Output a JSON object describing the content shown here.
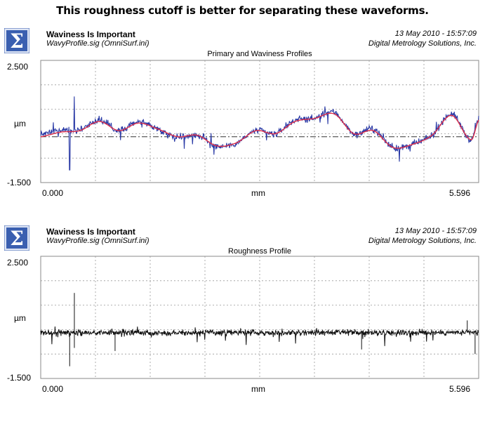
{
  "headline": "This roughness cutoff is better for separating these waveforms.",
  "colors": {
    "primary_profile": "#2a3aa6",
    "waviness_profile": "#e0304a",
    "roughness_profile": "#111111",
    "grid": "#9a9a9a",
    "logo_bg": "#3a5fb0",
    "logo_fg": "#ffffff"
  },
  "icon": "sigma-logo-icon",
  "panels": [
    {
      "header": {
        "title": "Waviness Is Important",
        "file": "WavyProfile.sig  (OmniSurf.ini)",
        "date": "13 May 2010 - 15:57:09",
        "company": "Digital Metrology Solutions, Inc."
      }
    },
    {
      "header": {
        "title": "Waviness Is Important",
        "file": "WavyProfile.sig  (OmniSurf.ini)",
        "date": "13 May 2010 - 15:57:09",
        "company": "Digital Metrology Solutions, Inc."
      }
    }
  ],
  "chart_data": [
    {
      "type": "line",
      "title": "Primary and Waviness Profiles",
      "xlabel": "mm",
      "ylabel": "µm",
      "xlim": [
        0.0,
        5.596
      ],
      "ylim": [
        -1.5,
        2.5
      ],
      "x_tick_labels": [
        "0.000",
        "5.596"
      ],
      "y_tick_labels": [
        "2.500",
        "-1.500"
      ],
      "grid": true,
      "reference_line": 0.0,
      "x": [
        0.0,
        0.25,
        0.5,
        0.75,
        1.0,
        1.25,
        1.5,
        1.75,
        2.0,
        2.25,
        2.5,
        2.75,
        3.0,
        3.25,
        3.5,
        3.75,
        4.0,
        4.25,
        4.5,
        4.75,
        5.0,
        5.25,
        5.5,
        5.596
      ],
      "series": [
        {
          "name": "",
          "role": "primary",
          "values": [
            0.1,
            0.2,
            0.25,
            0.55,
            0.2,
            0.5,
            0.25,
            0.0,
            0.05,
            -0.3,
            -0.2,
            0.2,
            0.1,
            0.55,
            0.6,
            0.8,
            0.1,
            0.25,
            -0.35,
            -0.25,
            0.05,
            0.75,
            -0.1,
            0.6
          ]
        },
        {
          "name": "",
          "role": "waviness",
          "values": [
            0.0,
            0.15,
            0.2,
            0.5,
            0.2,
            0.45,
            0.25,
            0.0,
            0.05,
            -0.3,
            -0.2,
            0.2,
            0.1,
            0.5,
            0.6,
            0.75,
            0.1,
            0.2,
            -0.35,
            -0.25,
            0.05,
            0.7,
            -0.1,
            0.55
          ]
        }
      ]
    },
    {
      "type": "line",
      "title": "Roughness Profile",
      "xlabel": "mm",
      "ylabel": "µm",
      "xlim": [
        0.0,
        5.596
      ],
      "ylim": [
        -1.5,
        2.5
      ],
      "x_tick_labels": [
        "0.000",
        "5.596"
      ],
      "y_tick_labels": [
        "2.500",
        "-1.500"
      ],
      "grid": true,
      "series": [
        {
          "name": "",
          "role": "roughness",
          "noise_amplitude": 0.12,
          "spikes": [
            {
              "x": 0.43,
              "y": 1.3
            },
            {
              "x": 0.43,
              "y": -0.5
            },
            {
              "x": 0.37,
              "y": -1.1
            },
            {
              "x": 0.95,
              "y": -0.6
            },
            {
              "x": 4.1,
              "y": -0.55
            },
            {
              "x": 5.45,
              "y": 0.4
            },
            {
              "x": 5.55,
              "y": -0.7
            }
          ]
        }
      ]
    }
  ]
}
